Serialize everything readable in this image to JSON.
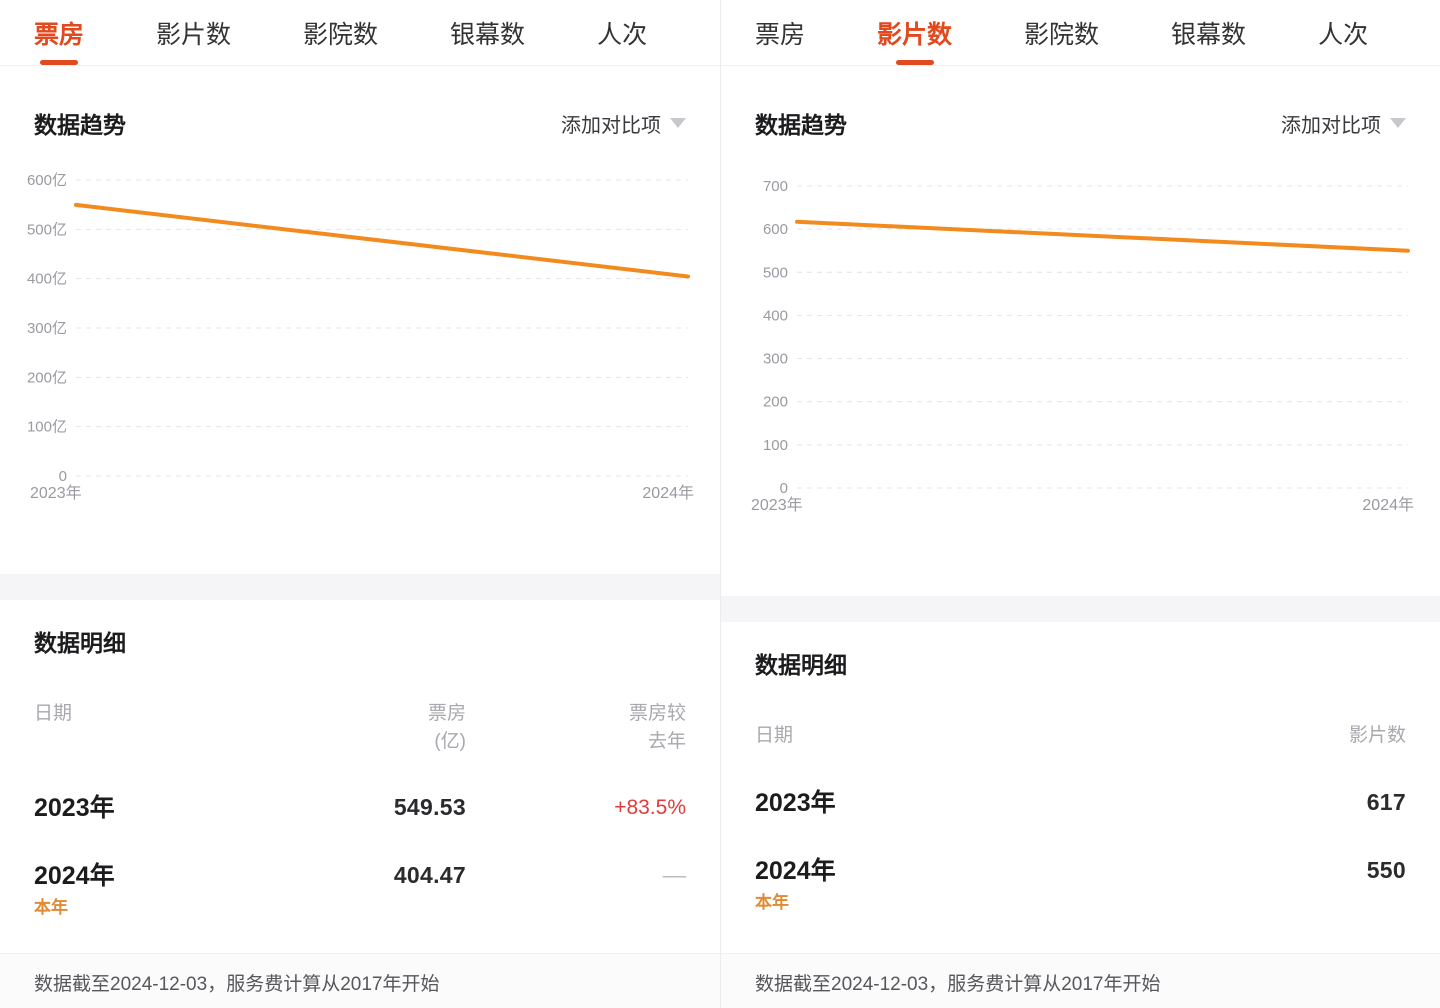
{
  "colors": {
    "accent": "#e2491f",
    "chart_line": "#f28a1e",
    "change_positive": "#e03c3c",
    "this_year_tag": "#e08a33"
  },
  "left": {
    "tabs": [
      "票房",
      "影片数",
      "影院数",
      "银幕数",
      "人次"
    ],
    "active_tab_index": 0,
    "trend": {
      "title": "数据趋势",
      "add_compare_label": "添加对比项"
    },
    "details": {
      "title": "数据明细",
      "col_date": "日期",
      "col_value_line1": "票房",
      "col_value_line2": "(亿)",
      "col_change_line1": "票房较",
      "col_change_line2": "去年",
      "rows": [
        {
          "date": "2023年",
          "tag": "",
          "value": "549.53",
          "change": "+83.5%"
        },
        {
          "date": "2024年",
          "tag": "本年",
          "value": "404.47",
          "change": "––"
        }
      ]
    },
    "footer": "数据截至2024-12-03，服务费计算从2017年开始"
  },
  "right": {
    "tabs": [
      "票房",
      "影片数",
      "影院数",
      "银幕数",
      "人次"
    ],
    "active_tab_index": 1,
    "trend": {
      "title": "数据趋势",
      "add_compare_label": "添加对比项"
    },
    "details": {
      "title": "数据明细",
      "col_date": "日期",
      "col_value": "影片数",
      "rows": [
        {
          "date": "2023年",
          "tag": "",
          "value": "617"
        },
        {
          "date": "2024年",
          "tag": "本年",
          "value": "550"
        }
      ]
    },
    "footer": "数据截至2024-12-03，服务费计算从2017年开始"
  },
  "chart_data": [
    {
      "type": "line",
      "panel": "left",
      "title": "数据趋势（票房）",
      "x": [
        "2023年",
        "2024年"
      ],
      "series": [
        {
          "name": "票房(亿)",
          "values": [
            549.53,
            404.47
          ]
        }
      ],
      "ylim": [
        0,
        600
      ],
      "ytick_step": 100,
      "ytick_suffix": "亿",
      "line_color": "#f28a1e",
      "grid": "dashed-horizontal",
      "legend": "none"
    },
    {
      "type": "line",
      "panel": "right",
      "title": "数据趋势（影片数）",
      "x": [
        "2023年",
        "2024年"
      ],
      "series": [
        {
          "name": "影片数",
          "values": [
            617,
            550
          ]
        }
      ],
      "ylim": [
        0,
        700
      ],
      "ytick_step": 100,
      "ytick_suffix": "",
      "line_color": "#f28a1e",
      "grid": "dashed-horizontal",
      "legend": "none"
    }
  ]
}
